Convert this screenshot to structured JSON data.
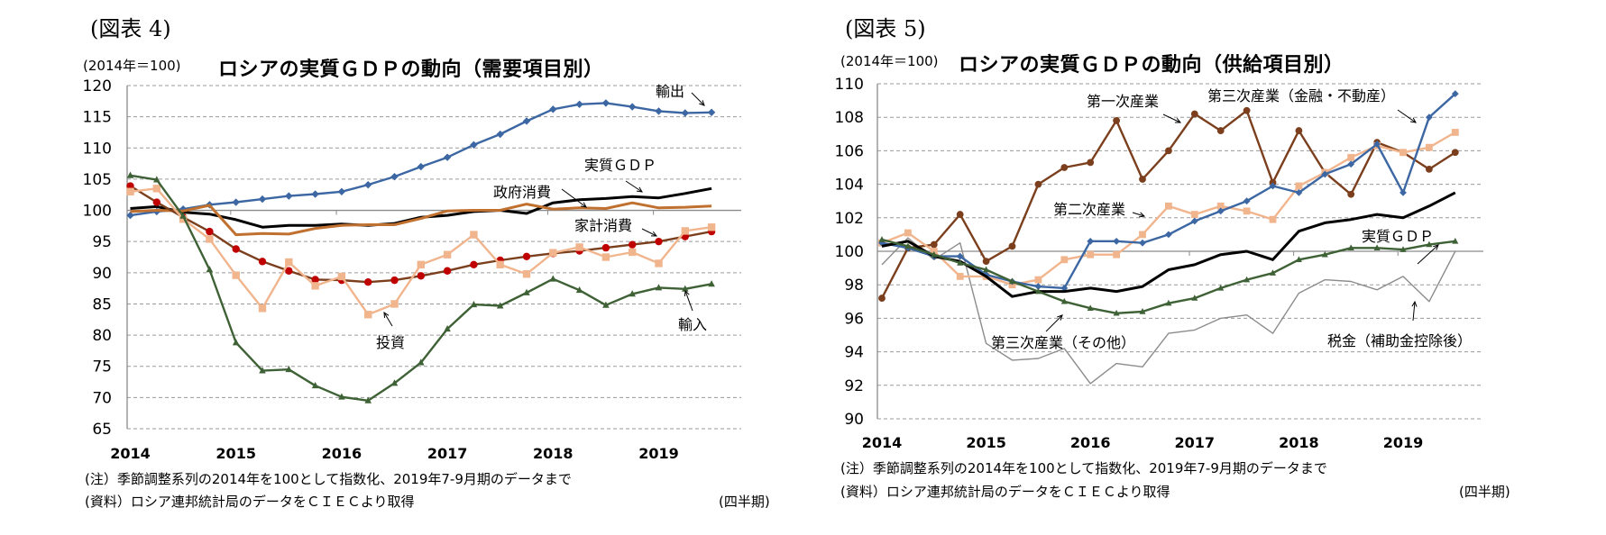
{
  "figures": [
    {
      "figure_label": "(図表 4)",
      "unit_label": "(2014年＝100)",
      "title": "ロシアの実質ＧＤＰの動向（需要項目別）",
      "note": "(注）季節調整系列の2014年を100として指数化、2019年7-9月期のデータまで",
      "source": "(資料）ロシア連邦統計局のデータをＣＩＥＣより取得",
      "period_label": "(四半期)"
    },
    {
      "figure_label": "(図表 5)",
      "unit_label": "(2014年＝100)",
      "title": "ロシアの実質ＧＤＰの動向（供給項目別）",
      "note": "(注）季節調整系列の2014年を100として指数化、2019年7-9月期のデータまで",
      "source": "(資料）ロシア連邦統計局のデータをＣＩＥＣより取得",
      "period_label": "(四半期)"
    }
  ],
  "chart_data": [
    {
      "type": "line",
      "title": "ロシアの実質ＧＤＰの動向（需要項目別）",
      "ylabel": "(2014年＝100)",
      "xlabel": "(四半期)",
      "x": [
        "2014Q1",
        "2014Q2",
        "2014Q3",
        "2014Q4",
        "2015Q1",
        "2015Q2",
        "2015Q3",
        "2015Q4",
        "2016Q1",
        "2016Q2",
        "2016Q3",
        "2016Q4",
        "2017Q1",
        "2017Q2",
        "2017Q3",
        "2017Q4",
        "2018Q1",
        "2018Q2",
        "2018Q3",
        "2018Q4",
        "2019Q1",
        "2019Q2",
        "2019Q3"
      ],
      "xtick_labels": [
        "2014",
        "2015",
        "2016",
        "2017",
        "2018",
        "2019"
      ],
      "ylim": [
        65,
        120
      ],
      "yticks": [
        65,
        70,
        75,
        80,
        85,
        90,
        95,
        100,
        105,
        110,
        115,
        120
      ],
      "grid": true,
      "baseline": 100,
      "series": [
        {
          "name": "輸出",
          "color": "#3c67a3",
          "marker": "diamond",
          "values": [
            99.2,
            99.8,
            100.2,
            100.9,
            101.3,
            101.8,
            102.3,
            102.6,
            103.0,
            104.1,
            105.4,
            107.0,
            108.5,
            110.5,
            112.2,
            114.3,
            116.2,
            117.0,
            117.2,
            116.6,
            115.9,
            115.6,
            115.7
          ]
        },
        {
          "name": "実質ＧＤＰ",
          "color": "#000000",
          "marker": "none",
          "values": [
            100.3,
            100.6,
            99.7,
            99.4,
            98.5,
            97.3,
            97.6,
            97.6,
            97.8,
            97.6,
            97.9,
            98.9,
            99.2,
            99.8,
            100.0,
            99.5,
            101.2,
            101.7,
            101.9,
            102.2,
            102.0,
            102.7,
            103.5
          ]
        },
        {
          "name": "政府消費",
          "color": "#c0702f",
          "marker": "none",
          "values": [
            99.8,
            100.0,
            99.9,
            100.8,
            96.1,
            96.3,
            96.2,
            97.1,
            97.6,
            97.7,
            97.7,
            98.7,
            99.9,
            100.0,
            100.0,
            101.0,
            100.2,
            100.4,
            100.3,
            101.2,
            100.4,
            100.5,
            100.7
          ]
        },
        {
          "name": "家計消費",
          "color": "#7b3f1d",
          "marker": "circle",
          "marker_color": "#c00000",
          "values": [
            103.9,
            101.3,
            98.9,
            96.6,
            93.8,
            91.8,
            90.3,
            88.9,
            88.8,
            88.5,
            88.8,
            89.5,
            90.3,
            91.3,
            92.0,
            92.6,
            93.1,
            93.5,
            94.0,
            94.5,
            95.0,
            95.8,
            96.6
          ]
        },
        {
          "name": "投資",
          "color": "#f1b58e",
          "marker": "square",
          "values": [
            103.0,
            103.5,
            98.6,
            95.4,
            89.6,
            84.3,
            91.7,
            87.9,
            89.4,
            83.3,
            85.0,
            91.3,
            92.9,
            96.1,
            91.3,
            89.8,
            93.2,
            94.1,
            92.5,
            93.3,
            91.5,
            96.7,
            97.3
          ]
        },
        {
          "name": "輸入",
          "color": "#3f6136",
          "marker": "triangle",
          "values": [
            105.6,
            104.9,
            99.1,
            90.5,
            78.8,
            74.3,
            74.5,
            71.9,
            70.1,
            69.5,
            72.3,
            75.6,
            81.0,
            84.9,
            84.7,
            86.8,
            89.0,
            87.2,
            84.8,
            86.6,
            87.6,
            87.4,
            88.2
          ]
        }
      ],
      "annotations": [
        {
          "text": "輸出",
          "series": "輸出"
        },
        {
          "text": "実質ＧＤＰ",
          "series": "実質ＧＤＰ"
        },
        {
          "text": "政府消費",
          "series": "政府消費"
        },
        {
          "text": "家計消費",
          "series": "家計消費"
        },
        {
          "text": "投資",
          "series": "投資"
        },
        {
          "text": "輸入",
          "series": "輸入"
        }
      ]
    },
    {
      "type": "line",
      "title": "ロシアの実質ＧＤＰの動向（供給項目別）",
      "ylabel": "(2014年＝100)",
      "xlabel": "(四半期)",
      "x": [
        "2014Q1",
        "2014Q2",
        "2014Q3",
        "2014Q4",
        "2015Q1",
        "2015Q2",
        "2015Q3",
        "2015Q4",
        "2016Q1",
        "2016Q2",
        "2016Q3",
        "2016Q4",
        "2017Q1",
        "2017Q2",
        "2017Q3",
        "2017Q4",
        "2018Q1",
        "2018Q2",
        "2018Q3",
        "2018Q4",
        "2019Q1",
        "2019Q2",
        "2019Q3"
      ],
      "xtick_labels": [
        "2014",
        "2015",
        "2016",
        "2017",
        "2018",
        "2019"
      ],
      "ylim": [
        90,
        110
      ],
      "yticks": [
        90,
        92,
        94,
        96,
        98,
        100,
        102,
        104,
        106,
        108,
        110
      ],
      "grid": true,
      "baseline": 100,
      "series": [
        {
          "name": "税金（補助金控除後）",
          "color": "#8c8c8c",
          "marker": "none",
          "thin": true,
          "values": [
            99.2,
            100.8,
            99.5,
            100.5,
            94.5,
            93.5,
            93.6,
            94.2,
            92.1,
            93.3,
            93.1,
            95.1,
            95.3,
            96.0,
            96.2,
            95.1,
            97.5,
            98.3,
            98.2,
            97.7,
            98.5,
            97.0,
            100.0
          ]
        },
        {
          "name": "第一次産業",
          "color": "#7b3f1d",
          "marker": "circle",
          "values": [
            97.2,
            100.2,
            100.4,
            102.2,
            99.4,
            100.3,
            104.0,
            105.0,
            105.3,
            107.8,
            104.3,
            106.0,
            108.2,
            107.2,
            108.4,
            104.1,
            107.2,
            104.7,
            103.4,
            106.5,
            105.9,
            104.9,
            105.9
          ]
        },
        {
          "name": "第二次産業",
          "color": "#f1b58e",
          "marker": "square",
          "values": [
            100.5,
            101.1,
            100.0,
            98.5,
            98.5,
            98.0,
            98.3,
            99.5,
            99.8,
            99.8,
            101.0,
            102.7,
            102.2,
            102.7,
            102.4,
            101.9,
            103.9,
            104.7,
            105.6,
            106.3,
            105.9,
            106.2,
            107.1
          ]
        },
        {
          "name": "第三次産業（金融・不動産）",
          "color": "#3c67a3",
          "marker": "diamond",
          "values": [
            100.5,
            100.2,
            99.7,
            99.7,
            98.6,
            98.2,
            97.9,
            97.8,
            100.6,
            100.6,
            100.5,
            101.0,
            101.8,
            102.4,
            103.0,
            103.9,
            103.5,
            104.6,
            105.2,
            106.4,
            103.5,
            108.0,
            109.4
          ]
        },
        {
          "name": "実質ＧＤＰ",
          "color": "#000000",
          "marker": "none",
          "values": [
            100.3,
            100.6,
            99.7,
            99.4,
            98.5,
            97.3,
            97.6,
            97.6,
            97.8,
            97.6,
            97.9,
            98.9,
            99.2,
            99.8,
            100.0,
            99.5,
            101.2,
            101.7,
            101.9,
            102.2,
            102.0,
            102.7,
            103.5
          ]
        },
        {
          "name": "第三次産業（その他）",
          "color": "#3f6136",
          "marker": "triangle",
          "values": [
            100.7,
            100.3,
            99.8,
            99.3,
            98.9,
            98.2,
            97.6,
            97.0,
            96.6,
            96.3,
            96.4,
            96.9,
            97.2,
            97.8,
            98.3,
            98.7,
            99.5,
            99.8,
            100.2,
            100.2,
            100.1,
            100.4,
            100.6
          ]
        }
      ],
      "annotations": [
        {
          "text": "第一次産業",
          "series": "第一次産業"
        },
        {
          "text": "第三次産業（金融・不動産）",
          "series": "第三次産業（金融・不動産）"
        },
        {
          "text": "第二次産業",
          "series": "第二次産業"
        },
        {
          "text": "実質ＧＤＰ",
          "series": "実質ＧＤＰ"
        },
        {
          "text": "第三次産業（その他）",
          "series": "第三次産業（その他）"
        },
        {
          "text": "税金（補助金控除後）",
          "series": "税金（補助金控除後）"
        }
      ]
    }
  ]
}
